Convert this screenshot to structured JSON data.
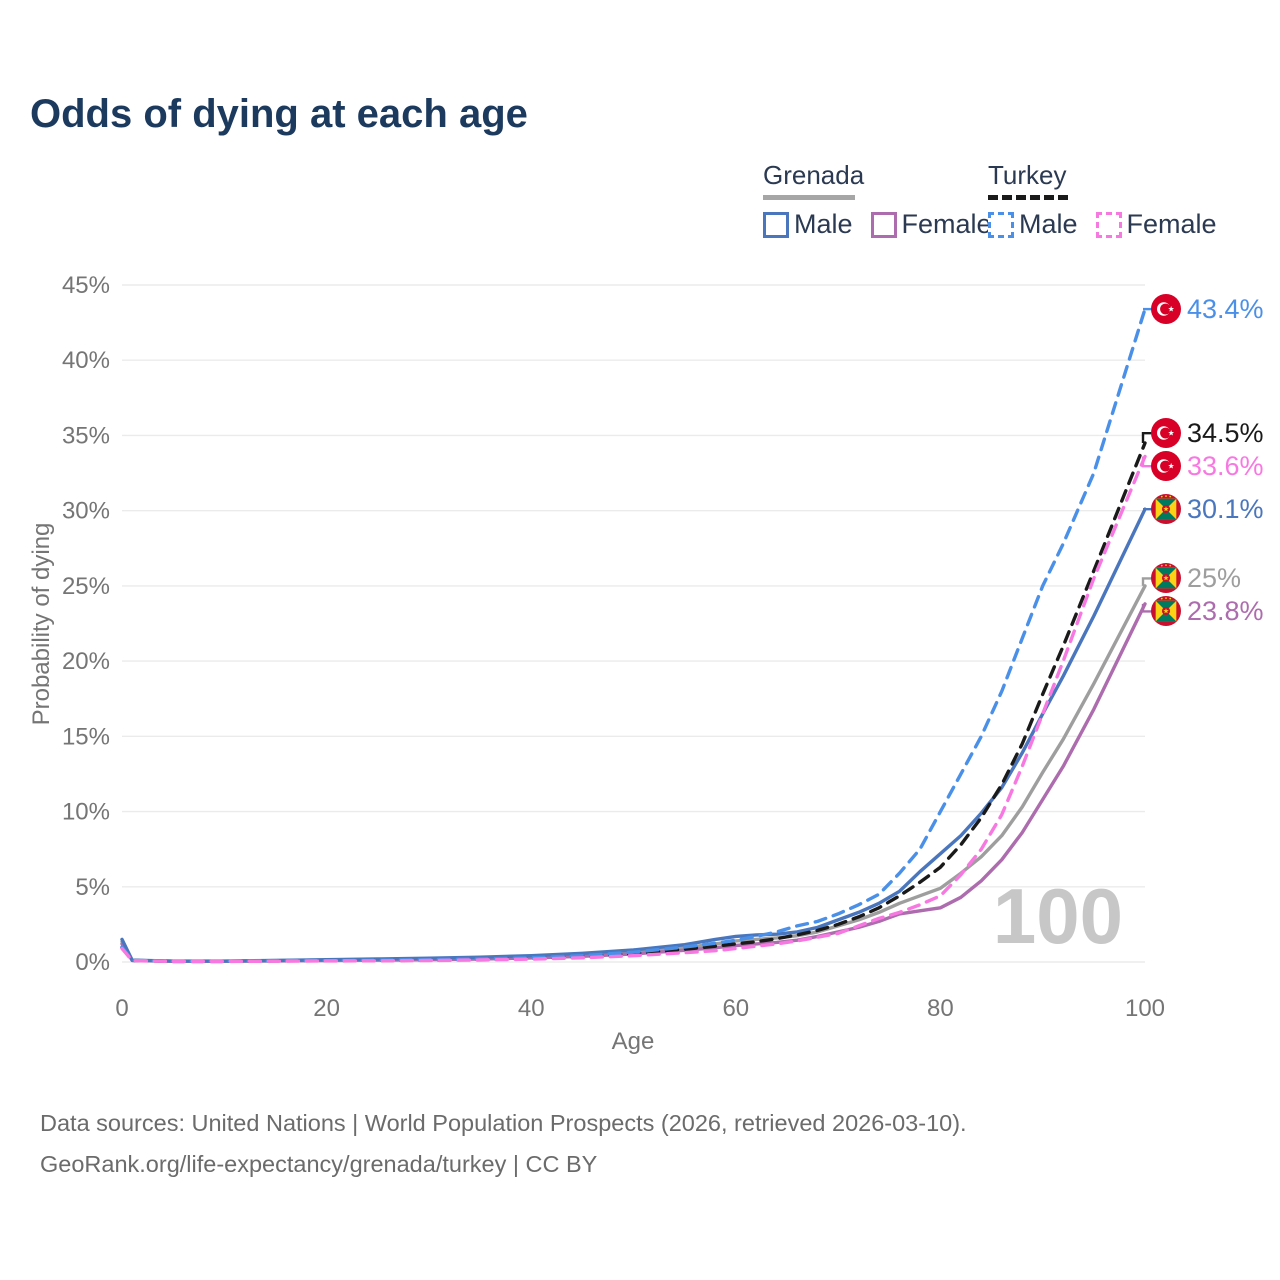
{
  "title": "Odds of dying at each age",
  "watermark": "100",
  "legend": {
    "grenada": {
      "label": "Grenada",
      "male": "Male",
      "female": "Female"
    },
    "turkey": {
      "label": "Turkey",
      "male": "Male",
      "female": "Female"
    }
  },
  "footer": {
    "line1": "Data sources: United Nations | World Population Prospects (2026, retrieved 2026-03-10).",
    "line2": "GeoRank.org/life-expectancy/grenada/turkey | CC BY"
  },
  "colors": {
    "title": "#1c3a5e",
    "axis_text": "#757575",
    "gridline": "#ebebeb",
    "watermark": "#c7c7c7",
    "legend_text": "#2b3a52"
  },
  "chart_data": {
    "type": "line",
    "title": "Odds of dying at each age",
    "xlabel": "Age",
    "ylabel": "Probability of dying",
    "xlim": [
      0,
      100
    ],
    "ylim": [
      0,
      45
    ],
    "x_ticks": [
      0,
      20,
      40,
      60,
      80,
      100
    ],
    "y_ticks": [
      0,
      5,
      10,
      15,
      20,
      25,
      30,
      35,
      40,
      45
    ],
    "y_tick_suffix": "%",
    "grid": "horizontal",
    "legend_position": "top-right",
    "ages": [
      0,
      1,
      5,
      10,
      15,
      20,
      25,
      30,
      35,
      40,
      45,
      50,
      55,
      58,
      60,
      62,
      64,
      66,
      68,
      70,
      72,
      74,
      76,
      78,
      80,
      82,
      84,
      86,
      88,
      90,
      92,
      95,
      100
    ],
    "series": [
      {
        "id": "grenada",
        "country": "Grenada",
        "label": "Grenada",
        "color": "#9e9e9e",
        "dash": null,
        "end_label": "25%",
        "end_value": 25.0,
        "flag": "grenada",
        "values": [
          1.35,
          0.11,
          0.05,
          0.05,
          0.09,
          0.13,
          0.17,
          0.2,
          0.26,
          0.34,
          0.47,
          0.65,
          0.95,
          1.2,
          1.4,
          1.5,
          1.6,
          1.75,
          2.0,
          2.4,
          2.8,
          3.3,
          3.9,
          4.4,
          4.9,
          5.9,
          7.0,
          8.4,
          10.3,
          12.6,
          14.8,
          18.5,
          25.0
        ]
      },
      {
        "id": "grenada-female",
        "country": "Grenada",
        "label": "Female",
        "color": "#ad6cad",
        "dash": null,
        "end_label": "23.8%",
        "end_value": 23.8,
        "flag": "grenada",
        "values": [
          1.2,
          0.1,
          0.05,
          0.05,
          0.07,
          0.1,
          0.12,
          0.15,
          0.2,
          0.27,
          0.38,
          0.54,
          0.78,
          0.95,
          1.1,
          1.2,
          1.3,
          1.45,
          1.7,
          2.0,
          2.3,
          2.7,
          3.2,
          3.4,
          3.6,
          4.3,
          5.4,
          6.8,
          8.6,
          10.8,
          13.0,
          16.8,
          23.8
        ]
      },
      {
        "id": "grenada-male",
        "country": "Grenada",
        "label": "Male",
        "color": "#4a76bd",
        "dash": null,
        "end_label": "30.1%",
        "end_value": 30.1,
        "flag": "grenada",
        "values": [
          1.5,
          0.12,
          0.06,
          0.06,
          0.1,
          0.15,
          0.2,
          0.25,
          0.32,
          0.42,
          0.58,
          0.8,
          1.15,
          1.5,
          1.7,
          1.8,
          1.85,
          2.0,
          2.3,
          2.8,
          3.3,
          3.9,
          4.7,
          6.0,
          7.2,
          8.4,
          9.9,
          11.6,
          13.9,
          16.5,
          19.0,
          23.0,
          30.1
        ]
      },
      {
        "id": "turkey",
        "country": "Turkey",
        "label": "Turkey",
        "color": "#1a1a1a",
        "dash": "11 8",
        "end_label": "34.5%",
        "end_value": 34.5,
        "flag": "turkey",
        "values": [
          0.95,
          0.1,
          0.04,
          0.04,
          0.07,
          0.09,
          0.1,
          0.12,
          0.17,
          0.24,
          0.36,
          0.55,
          0.85,
          1.05,
          1.2,
          1.35,
          1.55,
          1.8,
          2.1,
          2.5,
          3.0,
          3.6,
          4.4,
          5.3,
          6.3,
          7.8,
          9.6,
          11.8,
          14.5,
          17.8,
          21.0,
          26.0,
          34.5
        ]
      },
      {
        "id": "turkey-male",
        "country": "Turkey",
        "label": "Male",
        "color": "#4a90e8",
        "dash": "11 8",
        "end_label": "43.4%",
        "end_value": 43.4,
        "flag": "turkey",
        "values": [
          1.0,
          0.1,
          0.05,
          0.05,
          0.08,
          0.1,
          0.12,
          0.15,
          0.2,
          0.28,
          0.42,
          0.65,
          1.0,
          1.25,
          1.45,
          1.7,
          2.0,
          2.4,
          2.7,
          3.2,
          3.8,
          4.5,
          5.9,
          7.5,
          10.0,
          12.5,
          15.0,
          18.0,
          21.5,
          25.0,
          27.8,
          32.5,
          43.4
        ]
      },
      {
        "id": "turkey-female",
        "country": "Turkey",
        "label": "Female",
        "color": "#f878e2",
        "dash": "11 8",
        "end_label": "33.6%",
        "end_value": 33.6,
        "flag": "turkey",
        "values": [
          0.9,
          0.09,
          0.04,
          0.04,
          0.05,
          0.07,
          0.08,
          0.1,
          0.13,
          0.19,
          0.28,
          0.42,
          0.62,
          0.75,
          0.9,
          1.05,
          1.2,
          1.4,
          1.65,
          1.9,
          2.4,
          2.9,
          3.3,
          3.8,
          4.4,
          5.8,
          7.5,
          9.8,
          13.0,
          16.5,
          20.0,
          25.5,
          33.6
        ]
      }
    ]
  }
}
